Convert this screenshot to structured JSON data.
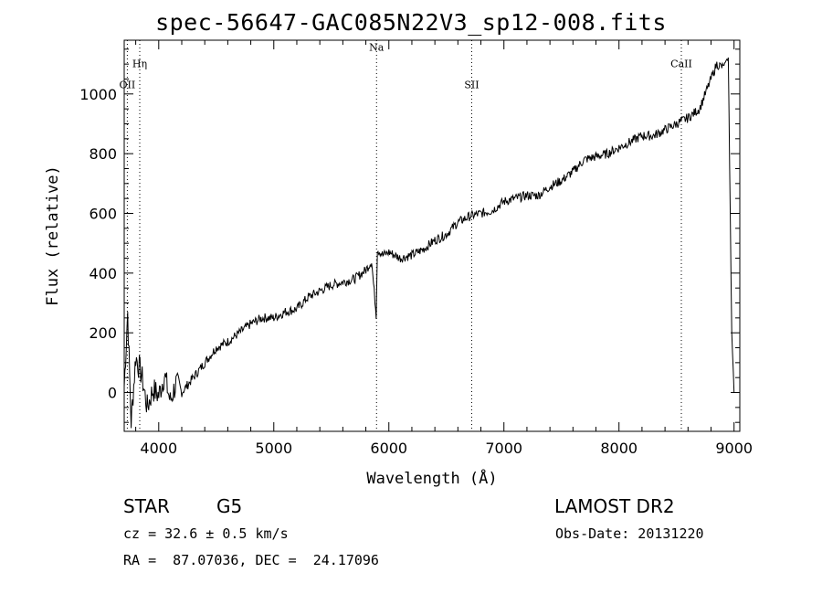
{
  "title": "spec-56647-GAC085N22V3_sp12-008.fits",
  "info": {
    "class_label": "STAR",
    "subclass_label": "G5",
    "survey": "LAMOST DR2",
    "cz": "cz = 32.6 ± 0.5 km/s",
    "obs_date": "Obs-Date: 20131220",
    "radec": "RA =  87.07036, DEC =  24.17096"
  },
  "chart_data": {
    "type": "line",
    "title": "spec-56647-GAC085N22V3_sp12-008.fits",
    "xlabel": "Wavelength (Å)",
    "ylabel": "Flux (relative)",
    "xlim": [
      3700,
      9050
    ],
    "ylim": [
      -130,
      1180
    ],
    "xticks": [
      4000,
      5000,
      6000,
      7000,
      8000,
      9000
    ],
    "yticks": [
      0,
      200,
      400,
      600,
      800,
      1000
    ],
    "grid": false,
    "line_color": "#000000",
    "lines": [
      {
        "name": "OII",
        "wavelength": 3727,
        "label_flux": 1020
      },
      {
        "name": "Hη",
        "wavelength": 3835,
        "label_flux": 1090
      },
      {
        "name": "Na",
        "wavelength": 5893,
        "label_flux": 1145
      },
      {
        "name": "SII",
        "wavelength": 6720,
        "label_flux": 1020
      },
      {
        "name": "CaII",
        "wavelength": 8542,
        "label_flux": 1090
      }
    ],
    "series": [
      {
        "x": [
          3700,
          3730,
          3760,
          3800,
          3850,
          3900,
          3950,
          4000,
          4050,
          4100,
          4150,
          4200,
          4300,
          4400,
          4500,
          4600,
          4700,
          4800,
          4900,
          5000,
          5100,
          5200,
          5300,
          5400,
          5500,
          5600,
          5700,
          5800,
          5850,
          5890,
          5900,
          5950,
          6000,
          6100,
          6200,
          6300,
          6400,
          6500,
          6600,
          6700,
          6800,
          6900,
          7000,
          7100,
          7200,
          7300,
          7400,
          7500,
          7600,
          7700,
          7800,
          7900,
          8000,
          8100,
          8200,
          8300,
          8400,
          8500,
          8600,
          8700,
          8750,
          8800,
          8850,
          8900,
          8950,
          8980,
          9000
        ],
        "y": [
          20,
          270,
          -100,
          120,
          60,
          -50,
          10,
          -10,
          60,
          -30,
          30,
          0,
          50,
          100,
          150,
          170,
          200,
          230,
          250,
          250,
          270,
          280,
          320,
          340,
          360,
          370,
          380,
          410,
          440,
          260,
          480,
          460,
          470,
          450,
          460,
          480,
          510,
          530,
          570,
          590,
          600,
          610,
          640,
          650,
          660,
          660,
          690,
          710,
          740,
          780,
          790,
          800,
          820,
          840,
          860,
          860,
          880,
          900,
          920,
          950,
          1000,
          1050,
          1100,
          1090,
          1120,
          200,
          0
        ]
      }
    ]
  }
}
